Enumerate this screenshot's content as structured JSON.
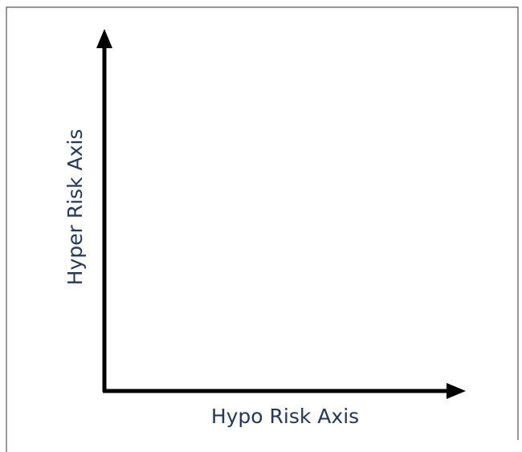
{
  "axes": {
    "x_label": "Hypo Risk Axis",
    "y_label": "Hyper Risk Axis"
  }
}
